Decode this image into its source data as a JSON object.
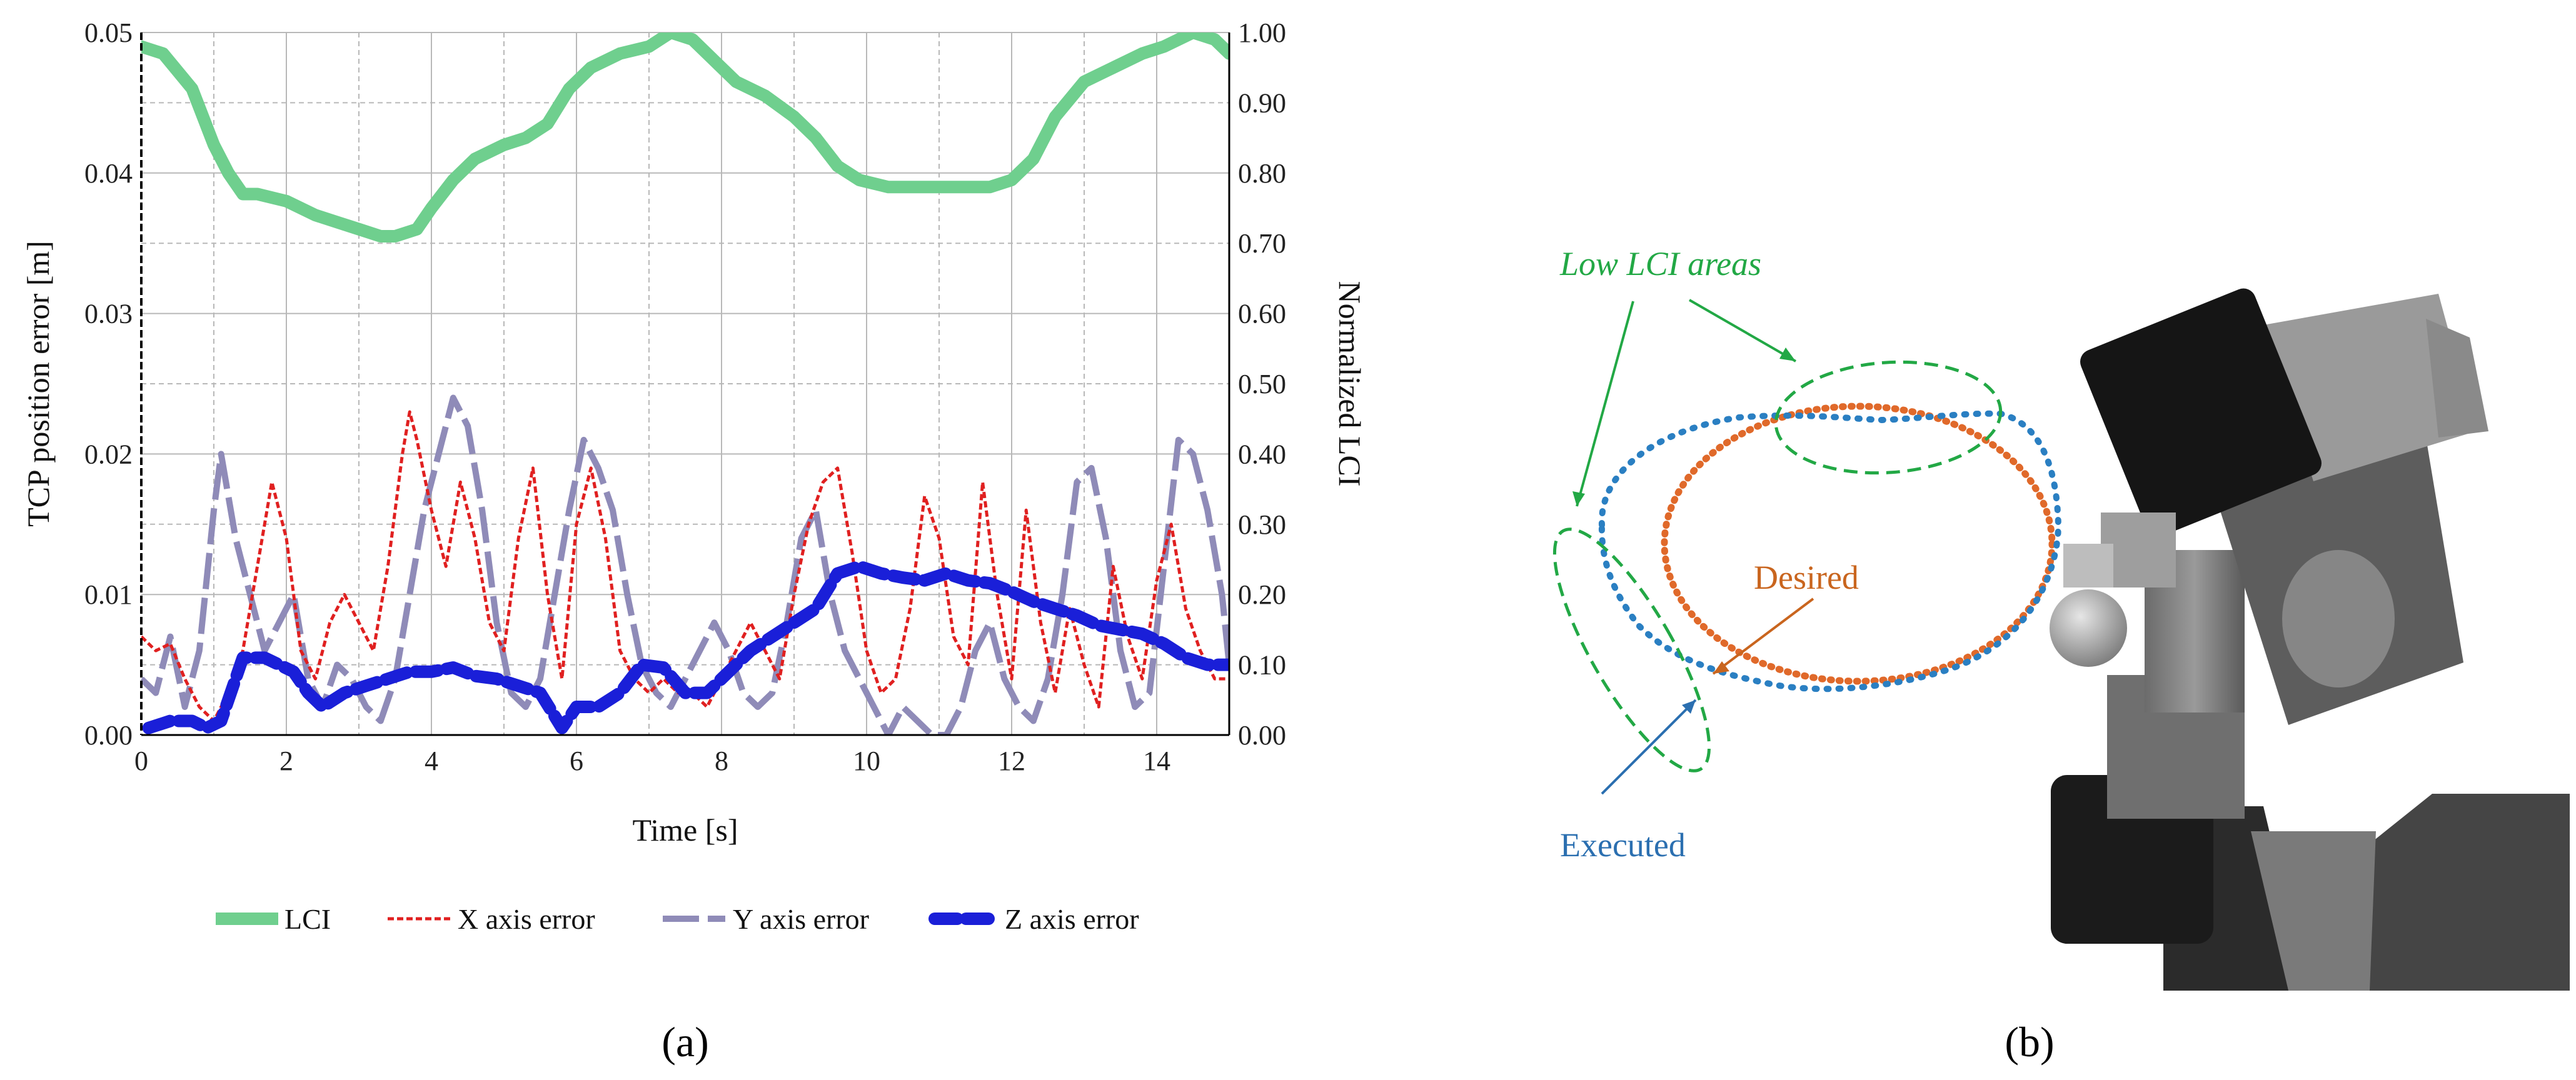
{
  "chart_data": [
    {
      "type": "line",
      "panel_label": "(a)",
      "xlabel": "Time [s]",
      "ylabel": "TCP position error [m]",
      "y2label": "Normalized LCI",
      "xlim": [
        0,
        15
      ],
      "ylim": [
        0,
        0.05
      ],
      "y2lim": [
        0,
        1
      ],
      "grid": true,
      "legend_position": "bottom",
      "x_ticks": [
        "0",
        "2",
        "4",
        "6",
        "8",
        "10",
        "12",
        "14"
      ],
      "y_ticks": [
        "0.00",
        "0.01",
        "0.02",
        "0.03",
        "0.04",
        "0.05"
      ],
      "y2_ticks": [
        "0.00",
        "0.10",
        "0.20",
        "0.30",
        "0.40",
        "0.50",
        "0.60",
        "0.70",
        "0.80",
        "0.90",
        "1.00"
      ],
      "series": [
        {
          "name": "LCI",
          "axis": "right",
          "color": "#6fcf8e",
          "style": "solid-thick",
          "x": [
            0,
            0.3,
            0.7,
            1.0,
            1.2,
            1.4,
            1.6,
            2.0,
            2.4,
            2.7,
            3.0,
            3.3,
            3.5,
            3.8,
            4.0,
            4.3,
            4.6,
            5.0,
            5.3,
            5.6,
            5.9,
            6.2,
            6.6,
            7.0,
            7.3,
            7.6,
            7.9,
            8.2,
            8.6,
            9.0,
            9.3,
            9.6,
            9.9,
            10.3,
            10.8,
            11.3,
            11.7,
            12.0,
            12.3,
            12.6,
            13.0,
            13.4,
            13.8,
            14.1,
            14.5,
            14.8,
            15.0
          ],
          "values": [
            0.98,
            0.97,
            0.92,
            0.84,
            0.8,
            0.77,
            0.77,
            0.76,
            0.74,
            0.73,
            0.72,
            0.71,
            0.71,
            0.72,
            0.75,
            0.79,
            0.82,
            0.84,
            0.85,
            0.87,
            0.92,
            0.95,
            0.97,
            0.98,
            1.0,
            0.99,
            0.96,
            0.93,
            0.91,
            0.88,
            0.85,
            0.81,
            0.79,
            0.78,
            0.78,
            0.78,
            0.78,
            0.79,
            0.82,
            0.88,
            0.93,
            0.95,
            0.97,
            0.98,
            1.0,
            0.99,
            0.97
          ]
        },
        {
          "name": "X axis error",
          "axis": "left",
          "color": "#e02020",
          "style": "dotted",
          "x": [
            0,
            0.2,
            0.4,
            0.6,
            0.8,
            1.0,
            1.2,
            1.4,
            1.6,
            1.8,
            2.0,
            2.2,
            2.4,
            2.6,
            2.8,
            3.0,
            3.2,
            3.4,
            3.6,
            3.7,
            3.8,
            4.0,
            4.2,
            4.4,
            4.6,
            4.8,
            5.0,
            5.2,
            5.4,
            5.6,
            5.8,
            6.0,
            6.2,
            6.4,
            6.6,
            6.8,
            7.0,
            7.2,
            7.4,
            7.6,
            7.8,
            8.0,
            8.2,
            8.4,
            8.6,
            8.8,
            9.0,
            9.2,
            9.4,
            9.6,
            9.8,
            10.0,
            10.2,
            10.4,
            10.6,
            10.8,
            11.0,
            11.2,
            11.4,
            11.6,
            11.8,
            12.0,
            12.2,
            12.4,
            12.6,
            12.8,
            13.0,
            13.2,
            13.4,
            13.6,
            13.8,
            14.0,
            14.2,
            14.4,
            14.6,
            14.8,
            15.0
          ],
          "values": [
            0.007,
            0.006,
            0.0065,
            0.004,
            0.002,
            0.001,
            0.003,
            0.006,
            0.012,
            0.018,
            0.014,
            0.006,
            0.004,
            0.008,
            0.01,
            0.008,
            0.006,
            0.012,
            0.02,
            0.023,
            0.021,
            0.016,
            0.012,
            0.018,
            0.014,
            0.008,
            0.006,
            0.014,
            0.019,
            0.01,
            0.004,
            0.015,
            0.019,
            0.014,
            0.006,
            0.004,
            0.003,
            0.004,
            0.003,
            0.003,
            0.002,
            0.004,
            0.006,
            0.008,
            0.006,
            0.004,
            0.01,
            0.015,
            0.018,
            0.019,
            0.013,
            0.006,
            0.003,
            0.004,
            0.009,
            0.017,
            0.014,
            0.007,
            0.005,
            0.018,
            0.01,
            0.004,
            0.016,
            0.008,
            0.003,
            0.009,
            0.005,
            0.002,
            0.012,
            0.007,
            0.004,
            0.011,
            0.015,
            0.009,
            0.006,
            0.004,
            0.004
          ]
        },
        {
          "name": "Y axis error",
          "axis": "left",
          "color": "#8f8bb8",
          "style": "long-dash",
          "x": [
            0,
            0.2,
            0.4,
            0.6,
            0.8,
            1.0,
            1.1,
            1.3,
            1.5,
            1.7,
            1.9,
            2.1,
            2.3,
            2.5,
            2.7,
            2.9,
            3.1,
            3.3,
            3.5,
            3.7,
            3.9,
            4.1,
            4.3,
            4.5,
            4.7,
            4.9,
            5.1,
            5.3,
            5.5,
            5.7,
            5.9,
            6.1,
            6.3,
            6.5,
            6.7,
            6.9,
            7.1,
            7.3,
            7.5,
            7.7,
            7.9,
            8.1,
            8.3,
            8.5,
            8.7,
            8.9,
            9.1,
            9.3,
            9.5,
            9.7,
            9.9,
            10.1,
            10.3,
            10.5,
            10.7,
            10.9,
            11.1,
            11.3,
            11.5,
            11.7,
            11.9,
            12.1,
            12.3,
            12.5,
            12.7,
            12.9,
            13.1,
            13.3,
            13.5,
            13.7,
            13.9,
            14.1,
            14.3,
            14.5,
            14.7,
            14.9,
            15.0
          ],
          "values": [
            0.004,
            0.003,
            0.007,
            0.002,
            0.006,
            0.016,
            0.02,
            0.014,
            0.01,
            0.006,
            0.008,
            0.01,
            0.004,
            0.002,
            0.005,
            0.004,
            0.002,
            0.001,
            0.004,
            0.01,
            0.016,
            0.02,
            0.024,
            0.022,
            0.016,
            0.008,
            0.003,
            0.002,
            0.004,
            0.01,
            0.016,
            0.021,
            0.019,
            0.016,
            0.01,
            0.005,
            0.003,
            0.002,
            0.004,
            0.006,
            0.008,
            0.006,
            0.003,
            0.002,
            0.003,
            0.008,
            0.014,
            0.016,
            0.01,
            0.006,
            0.004,
            0.002,
            0.0,
            0.002,
            0.001,
            0.0,
            0.0,
            0.002,
            0.006,
            0.008,
            0.004,
            0.002,
            0.001,
            0.004,
            0.01,
            0.018,
            0.019,
            0.014,
            0.006,
            0.002,
            0.003,
            0.012,
            0.021,
            0.02,
            0.016,
            0.01,
            0.005
          ]
        },
        {
          "name": "Z axis error",
          "axis": "left",
          "color": "#1a1fd8",
          "style": "thick-dash",
          "x": [
            0.1,
            0.4,
            0.7,
            0.9,
            1.1,
            1.4,
            1.7,
            1.9,
            2.1,
            2.3,
            2.5,
            2.8,
            3.1,
            3.4,
            3.7,
            4.0,
            4.3,
            4.6,
            4.9,
            5.2,
            5.5,
            5.8,
            6.0,
            6.3,
            6.6,
            6.9,
            7.2,
            7.5,
            7.8,
            8.1,
            8.4,
            8.7,
            9.0,
            9.3,
            9.6,
            9.9,
            10.2,
            10.5,
            10.8,
            11.1,
            11.4,
            11.7,
            12.0,
            12.3,
            12.6,
            12.9,
            13.2,
            13.5,
            13.8,
            14.1,
            14.4,
            14.7,
            15.0
          ],
          "values": [
            0.0005,
            0.001,
            0.001,
            0.0005,
            0.001,
            0.0055,
            0.0055,
            0.005,
            0.0045,
            0.003,
            0.002,
            0.003,
            0.0035,
            0.004,
            0.0045,
            0.0045,
            0.0048,
            0.0042,
            0.004,
            0.0035,
            0.003,
            0.0005,
            0.002,
            0.002,
            0.003,
            0.005,
            0.0048,
            0.003,
            0.003,
            0.0045,
            0.006,
            0.007,
            0.008,
            0.009,
            0.0115,
            0.012,
            0.0115,
            0.0112,
            0.011,
            0.0115,
            0.011,
            0.0108,
            0.0102,
            0.0095,
            0.009,
            0.0085,
            0.0078,
            0.0075,
            0.0072,
            0.0065,
            0.0055,
            0.005,
            0.005
          ]
        }
      ]
    },
    {
      "type": "scatter",
      "panel_label": "(b)",
      "title": "",
      "annotations": [
        "Low LCI areas",
        "Desired",
        "Executed"
      ],
      "series": [
        {
          "name": "Desired",
          "color": "#e0692a",
          "shape": "ellipse"
        },
        {
          "name": "Executed",
          "color": "#2a7fc2",
          "shape": "ellipse-with-deviations"
        }
      ],
      "colors": {
        "low_lci": "#22a845",
        "desired": "#c9651e",
        "executed": "#2b6fb0"
      }
    }
  ]
}
